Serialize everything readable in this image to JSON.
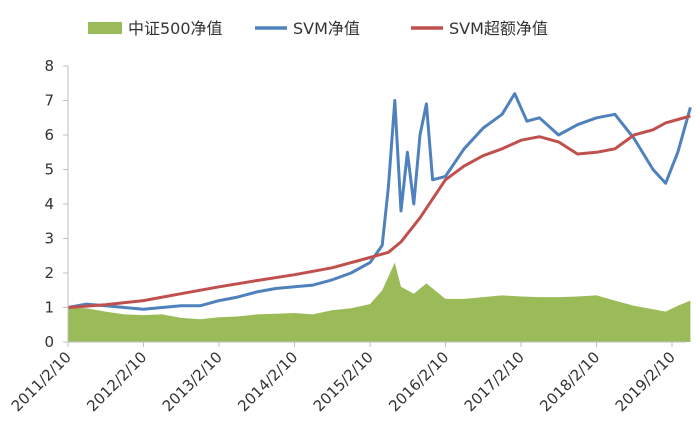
{
  "chart_data": {
    "type": "line",
    "ylim": [
      0,
      8
    ],
    "y_ticks": [
      "0",
      "1",
      "2",
      "3",
      "4",
      "5",
      "6",
      "7",
      "8"
    ],
    "x_tick_labels": [
      "2011/2/10",
      "2012/2/10",
      "2013/2/10",
      "2014/2/10",
      "2015/2/10",
      "2016/2/10",
      "2017/2/10",
      "2018/2/10",
      "2019/2/10"
    ],
    "grid": false,
    "legend_position": "top",
    "series": [
      {
        "name": "中证500净值",
        "style": "area",
        "color": "#9BBB59",
        "points": [
          [
            "2011/2/10",
            1.0
          ],
          [
            "2011/5/10",
            0.98
          ],
          [
            "2011/8/10",
            0.88
          ],
          [
            "2011/11/10",
            0.8
          ],
          [
            "2012/2/10",
            0.78
          ],
          [
            "2012/5/10",
            0.8
          ],
          [
            "2012/8/10",
            0.7
          ],
          [
            "2012/11/10",
            0.66
          ],
          [
            "2013/2/10",
            0.72
          ],
          [
            "2013/5/10",
            0.74
          ],
          [
            "2013/8/10",
            0.8
          ],
          [
            "2013/11/10",
            0.82
          ],
          [
            "2014/2/10",
            0.84
          ],
          [
            "2014/5/10",
            0.8
          ],
          [
            "2014/8/10",
            0.92
          ],
          [
            "2014/11/10",
            0.98
          ],
          [
            "2015/2/10",
            1.1
          ],
          [
            "2015/4/10",
            1.5
          ],
          [
            "2015/6/10",
            2.3
          ],
          [
            "2015/7/10",
            1.6
          ],
          [
            "2015/9/10",
            1.4
          ],
          [
            "2015/11/10",
            1.7
          ],
          [
            "2016/2/10",
            1.25
          ],
          [
            "2016/5/10",
            1.25
          ],
          [
            "2016/8/10",
            1.3
          ],
          [
            "2016/11/10",
            1.35
          ],
          [
            "2017/2/10",
            1.32
          ],
          [
            "2017/5/10",
            1.3
          ],
          [
            "2017/8/10",
            1.3
          ],
          [
            "2017/11/10",
            1.32
          ],
          [
            "2018/2/10",
            1.35
          ],
          [
            "2018/5/10",
            1.2
          ],
          [
            "2018/8/10",
            1.05
          ],
          [
            "2018/11/10",
            0.95
          ],
          [
            "2019/1/10",
            0.88
          ],
          [
            "2019/3/10",
            1.05
          ],
          [
            "2019/5/10",
            1.2
          ]
        ]
      },
      {
        "name": "SVM净值",
        "style": "line",
        "color": "#4F81BD",
        "points": [
          [
            "2011/2/10",
            1.0
          ],
          [
            "2011/5/10",
            1.1
          ],
          [
            "2011/8/10",
            1.05
          ],
          [
            "2011/11/10",
            1.0
          ],
          [
            "2012/2/10",
            0.95
          ],
          [
            "2012/5/10",
            1.0
          ],
          [
            "2012/8/10",
            1.05
          ],
          [
            "2012/11/10",
            1.05
          ],
          [
            "2013/2/10",
            1.2
          ],
          [
            "2013/5/10",
            1.3
          ],
          [
            "2013/8/10",
            1.45
          ],
          [
            "2013/11/10",
            1.55
          ],
          [
            "2014/2/10",
            1.6
          ],
          [
            "2014/5/10",
            1.65
          ],
          [
            "2014/8/10",
            1.8
          ],
          [
            "2014/11/10",
            2.0
          ],
          [
            "2015/2/10",
            2.3
          ],
          [
            "2015/4/10",
            2.8
          ],
          [
            "2015/5/10",
            4.5
          ],
          [
            "2015/6/10",
            7.0
          ],
          [
            "2015/7/10",
            3.8
          ],
          [
            "2015/8/10",
            5.5
          ],
          [
            "2015/9/10",
            4.0
          ],
          [
            "2015/10/10",
            6.0
          ],
          [
            "2015/11/10",
            6.9
          ],
          [
            "2015/12/10",
            4.7
          ],
          [
            "2016/2/10",
            4.8
          ],
          [
            "2016/5/10",
            5.6
          ],
          [
            "2016/8/10",
            6.2
          ],
          [
            "2016/11/10",
            6.6
          ],
          [
            "2017/1/10",
            7.2
          ],
          [
            "2017/3/10",
            6.4
          ],
          [
            "2017/5/10",
            6.5
          ],
          [
            "2017/8/10",
            6.0
          ],
          [
            "2017/11/10",
            6.3
          ],
          [
            "2018/2/10",
            6.5
          ],
          [
            "2018/5/10",
            6.6
          ],
          [
            "2018/8/10",
            5.9
          ],
          [
            "2018/11/10",
            5.0
          ],
          [
            "2019/1/10",
            4.6
          ],
          [
            "2019/3/10",
            5.5
          ],
          [
            "2019/5/10",
            6.8
          ]
        ]
      },
      {
        "name": "SVM超额净值",
        "style": "line",
        "color": "#C0504D",
        "points": [
          [
            "2011/2/10",
            1.0
          ],
          [
            "2011/8/10",
            1.08
          ],
          [
            "2012/2/10",
            1.2
          ],
          [
            "2012/8/10",
            1.4
          ],
          [
            "2013/2/10",
            1.6
          ],
          [
            "2013/8/10",
            1.78
          ],
          [
            "2014/2/10",
            1.95
          ],
          [
            "2014/8/10",
            2.15
          ],
          [
            "2015/2/10",
            2.45
          ],
          [
            "2015/5/10",
            2.6
          ],
          [
            "2015/7/10",
            2.9
          ],
          [
            "2015/10/10",
            3.6
          ],
          [
            "2016/2/10",
            4.7
          ],
          [
            "2016/5/10",
            5.1
          ],
          [
            "2016/8/10",
            5.4
          ],
          [
            "2016/11/10",
            5.6
          ],
          [
            "2017/2/10",
            5.85
          ],
          [
            "2017/5/10",
            5.95
          ],
          [
            "2017/8/10",
            5.8
          ],
          [
            "2017/11/10",
            5.45
          ],
          [
            "2018/2/10",
            5.5
          ],
          [
            "2018/5/10",
            5.6
          ],
          [
            "2018/8/10",
            6.0
          ],
          [
            "2018/11/10",
            6.15
          ],
          [
            "2019/1/10",
            6.35
          ],
          [
            "2019/3/10",
            6.45
          ],
          [
            "2019/5/10",
            6.55
          ]
        ]
      }
    ]
  }
}
